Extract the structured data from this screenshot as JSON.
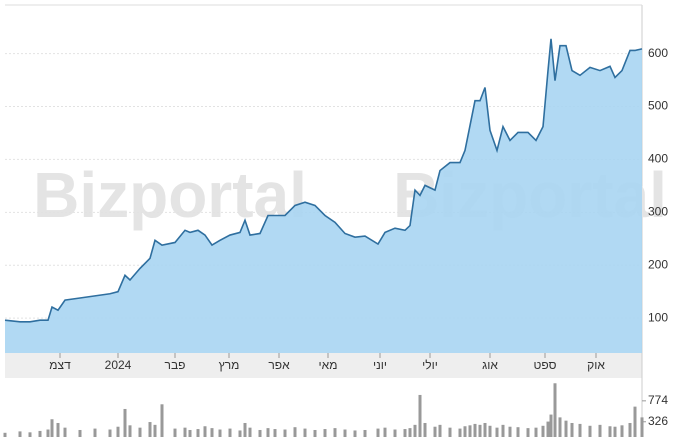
{
  "chart_data": [
    {
      "type": "line",
      "watermark": "Bizportal",
      "x": [
        0,
        15,
        25,
        35,
        43,
        47,
        53,
        60,
        75,
        90,
        105,
        113,
        120,
        125,
        135,
        145,
        150,
        157,
        170,
        180,
        185,
        193,
        200,
        207,
        215,
        225,
        235,
        240,
        245,
        255,
        263,
        270,
        280,
        290,
        300,
        310,
        320,
        330,
        340,
        350,
        360,
        373,
        380,
        390,
        400,
        405,
        410,
        415,
        420,
        430,
        435,
        445,
        455,
        460,
        465,
        470,
        475,
        480,
        485,
        492,
        498,
        505,
        513,
        523,
        531,
        538,
        543,
        546,
        550,
        555,
        561,
        567,
        575,
        585,
        595,
        605,
        610,
        617,
        625,
        630,
        637
      ],
      "series": [
        {
          "color": "#2f6f9f",
          "values": [
            96,
            93,
            93,
            96,
            96,
            121,
            115,
            134,
            138,
            142,
            146,
            150,
            181,
            172,
            194,
            213,
            247,
            238,
            243,
            266,
            262,
            266,
            257,
            238,
            247,
            257,
            262,
            285,
            257,
            260,
            294,
            294,
            294,
            313,
            319,
            313,
            294,
            281,
            260,
            253,
            255,
            240,
            262,
            270,
            266,
            275,
            342,
            332,
            351,
            342,
            379,
            394,
            394,
            417,
            464,
            511,
            511,
            536,
            455,
            417,
            462,
            436,
            451,
            451,
            436,
            462,
            568,
            628,
            549,
            615,
            615,
            568,
            559,
            574,
            568,
            576,
            555,
            568,
            606,
            606,
            609
          ]
        }
      ],
      "xlim": [
        0,
        637
      ],
      "xticks": [
        {
          "value": 55,
          "label": "דצמ"
        },
        {
          "value": 113,
          "label": "2024"
        },
        {
          "value": 170,
          "label": "פבר"
        },
        {
          "value": 224,
          "label": "מרץ"
        },
        {
          "value": 274,
          "label": "אפר"
        },
        {
          "value": 323,
          "label": "מאי"
        },
        {
          "value": 375,
          "label": "יוני"
        },
        {
          "value": 425,
          "label": "יולי"
        },
        {
          "value": 485,
          "label": "אוג"
        },
        {
          "value": 540,
          "label": "ספט"
        },
        {
          "value": 591,
          "label": "אוק"
        }
      ],
      "ylim": [
        34,
        692
      ],
      "yticks": [
        100,
        200,
        300,
        400,
        500,
        600
      ],
      "grid": true
    },
    {
      "type": "bar",
      "x": [
        0,
        15,
        25,
        35,
        43,
        47,
        53,
        60,
        75,
        90,
        105,
        113,
        120,
        125,
        135,
        145,
        150,
        157,
        170,
        180,
        185,
        193,
        200,
        207,
        215,
        225,
        235,
        240,
        245,
        255,
        263,
        270,
        280,
        290,
        300,
        310,
        320,
        330,
        340,
        350,
        360,
        373,
        380,
        390,
        400,
        405,
        410,
        415,
        420,
        430,
        435,
        445,
        455,
        460,
        465,
        470,
        475,
        480,
        485,
        492,
        498,
        505,
        513,
        523,
        531,
        538,
        543,
        546,
        550,
        555,
        561,
        567,
        575,
        585,
        595,
        605,
        610,
        617,
        625,
        630,
        637
      ],
      "values": [
        90,
        120,
        100,
        130,
        160,
        380,
        300,
        200,
        150,
        180,
        160,
        220,
        600,
        250,
        200,
        320,
        260,
        700,
        180,
        200,
        150,
        170,
        230,
        190,
        160,
        180,
        140,
        300,
        200,
        150,
        190,
        170,
        160,
        210,
        180,
        150,
        170,
        190,
        160,
        140,
        150,
        180,
        200,
        160,
        170,
        190,
        260,
        900,
        300,
        220,
        260,
        200,
        180,
        230,
        250,
        280,
        260,
        300,
        240,
        200,
        260,
        220,
        210,
        190,
        200,
        240,
        330,
        480,
        1150,
        420,
        350,
        300,
        280,
        240,
        260,
        230,
        220,
        250,
        300,
        650,
        420
      ],
      "color": "#999999",
      "ylim": [
        0,
        1220
      ],
      "yticks": [
        326,
        774
      ]
    }
  ]
}
